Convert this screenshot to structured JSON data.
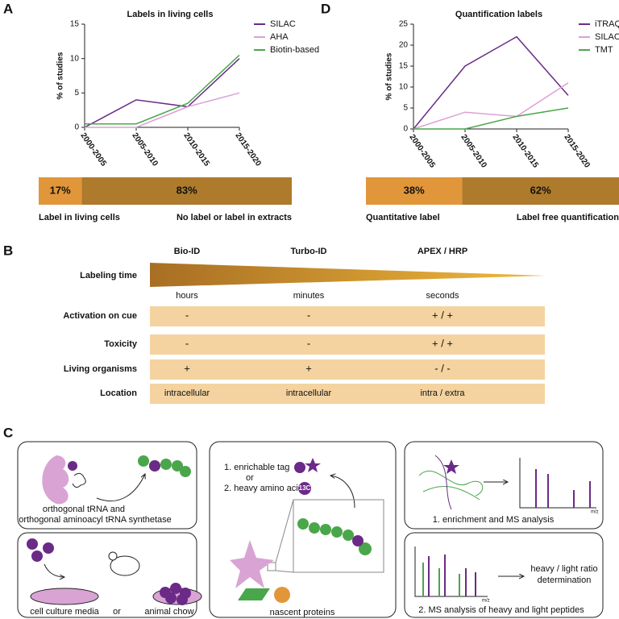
{
  "panel_labels": [
    "A",
    "B",
    "C",
    "D"
  ],
  "chart_data": [
    {
      "type": "line",
      "title": "Labels in living cells",
      "y_label": "% of studies",
      "categories": [
        "2000-2005",
        "2005-2010",
        "2010-2015",
        "2015-2020"
      ],
      "series": [
        {
          "name": "SILAC",
          "color": "#6b2a87",
          "values": [
            0,
            4,
            3,
            10
          ]
        },
        {
          "name": "AHA",
          "color": "#dca0d6",
          "values": [
            0,
            0,
            3,
            5
          ]
        },
        {
          "name": "Biotin-based",
          "color": "#4aa64a",
          "values": [
            0.5,
            0.5,
            3.5,
            10.5
          ]
        }
      ],
      "ylim": [
        0,
        15
      ],
      "yticks": [
        0,
        5,
        10,
        15
      ]
    },
    {
      "type": "stacked-bar",
      "categories": [
        "Label in living cells",
        "No label or label in extracts"
      ],
      "values": [
        17,
        83
      ],
      "value_labels": [
        "17%",
        "83%"
      ],
      "colors": [
        "#e2963a",
        "#ae7a2c"
      ]
    },
    {
      "type": "line",
      "title": "Quantification labels",
      "y_label": "% of studies",
      "categories": [
        "2000-2005",
        "2005-2010",
        "2010-2015",
        "2015-2020"
      ],
      "series": [
        {
          "name": "iTRAQ",
          "color": "#6b2a87",
          "values": [
            0,
            15,
            22,
            8
          ]
        },
        {
          "name": "SILAC",
          "color": "#dca0d6",
          "values": [
            0,
            4,
            3,
            11
          ]
        },
        {
          "name": "TMT",
          "color": "#4aa64a",
          "values": [
            0,
            0,
            3,
            5
          ]
        }
      ],
      "ylim": [
        0,
        25
      ],
      "yticks": [
        0,
        5,
        10,
        15,
        20,
        25
      ]
    },
    {
      "type": "stacked-bar",
      "categories": [
        "Quantitative label",
        "Label free quantification"
      ],
      "values": [
        38,
        62
      ],
      "value_labels": [
        "38%",
        "62%"
      ],
      "colors": [
        "#e2963a",
        "#ae7a2c"
      ]
    }
  ],
  "table": {
    "columns": [
      "Bio-ID",
      "Turbo-ID",
      "APEX / HRP"
    ],
    "labeling_time": {
      "label": "Labeling time",
      "values": [
        "hours",
        "minutes",
        "seconds"
      ]
    },
    "rows": [
      {
        "label": "Activation on cue",
        "cells": [
          "-",
          "-",
          "+ / +"
        ]
      },
      {
        "label": "Toxicity",
        "cells": [
          "-",
          "-",
          "+ / +"
        ]
      },
      {
        "label": "Living organisms",
        "cells": [
          "+",
          "+",
          "- / -"
        ]
      },
      {
        "label": "Location",
        "cells": [
          "intracellular",
          "intracellular",
          "intra / extra"
        ]
      }
    ]
  },
  "panel_c": {
    "trna_line1": "orthogonal tRNA and",
    "trna_line2": "orthogonal aminoacyl tRNA synthetase",
    "media": "cell culture media",
    "or1": "or",
    "chow": "animal chow",
    "tag": "1. enrichable tag",
    "or2": "or",
    "heavy": "2. heavy amino acid",
    "isotope": "13C",
    "nascent": "nascent proteins",
    "enrichment": "1. enrichment and MS analysis",
    "ratio_line1": "heavy / light ratio",
    "ratio_line2": "determination",
    "ms_heavy_light": "2. MS analysis of heavy and light peptides",
    "mz1": "m/z",
    "mz2": "m/z"
  }
}
